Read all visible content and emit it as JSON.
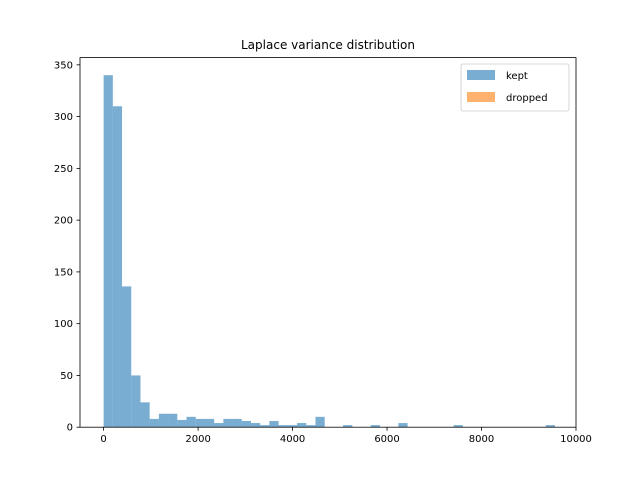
{
  "chart_data": {
    "type": "bar",
    "title": "Laplace variance distribution",
    "xlabel": "",
    "ylabel": "",
    "xlim": [
      -500,
      10000
    ],
    "ylim": [
      0,
      357
    ],
    "xticks": [
      0,
      2000,
      4000,
      6000,
      8000,
      10000
    ],
    "yticks": [
      0,
      50,
      100,
      150,
      200,
      250,
      300,
      350
    ],
    "grid": false,
    "legend_position": "top-right",
    "bin_width": 195,
    "series": [
      {
        "name": "kept",
        "color": "#1f77b4",
        "opacity": 0.6,
        "bins": [
          {
            "x": 0,
            "count": 340
          },
          {
            "x": 195,
            "count": 310
          },
          {
            "x": 390,
            "count": 136
          },
          {
            "x": 585,
            "count": 50
          },
          {
            "x": 780,
            "count": 24
          },
          {
            "x": 975,
            "count": 8
          },
          {
            "x": 1170,
            "count": 13
          },
          {
            "x": 1365,
            "count": 13
          },
          {
            "x": 1560,
            "count": 7
          },
          {
            "x": 1755,
            "count": 10
          },
          {
            "x": 1950,
            "count": 8
          },
          {
            "x": 2145,
            "count": 8
          },
          {
            "x": 2340,
            "count": 4
          },
          {
            "x": 2535,
            "count": 8
          },
          {
            "x": 2730,
            "count": 8
          },
          {
            "x": 2925,
            "count": 6
          },
          {
            "x": 3120,
            "count": 4
          },
          {
            "x": 3315,
            "count": 2
          },
          {
            "x": 3510,
            "count": 6
          },
          {
            "x": 3705,
            "count": 2
          },
          {
            "x": 3900,
            "count": 2
          },
          {
            "x": 4095,
            "count": 4
          },
          {
            "x": 4290,
            "count": 2
          },
          {
            "x": 4485,
            "count": 10
          },
          {
            "x": 5070,
            "count": 2
          },
          {
            "x": 5655,
            "count": 2
          },
          {
            "x": 6240,
            "count": 4
          },
          {
            "x": 7410,
            "count": 2
          },
          {
            "x": 9360,
            "count": 2
          }
        ]
      },
      {
        "name": "dropped",
        "color": "#ff7f0e",
        "opacity": 0.6,
        "bins": []
      }
    ]
  }
}
